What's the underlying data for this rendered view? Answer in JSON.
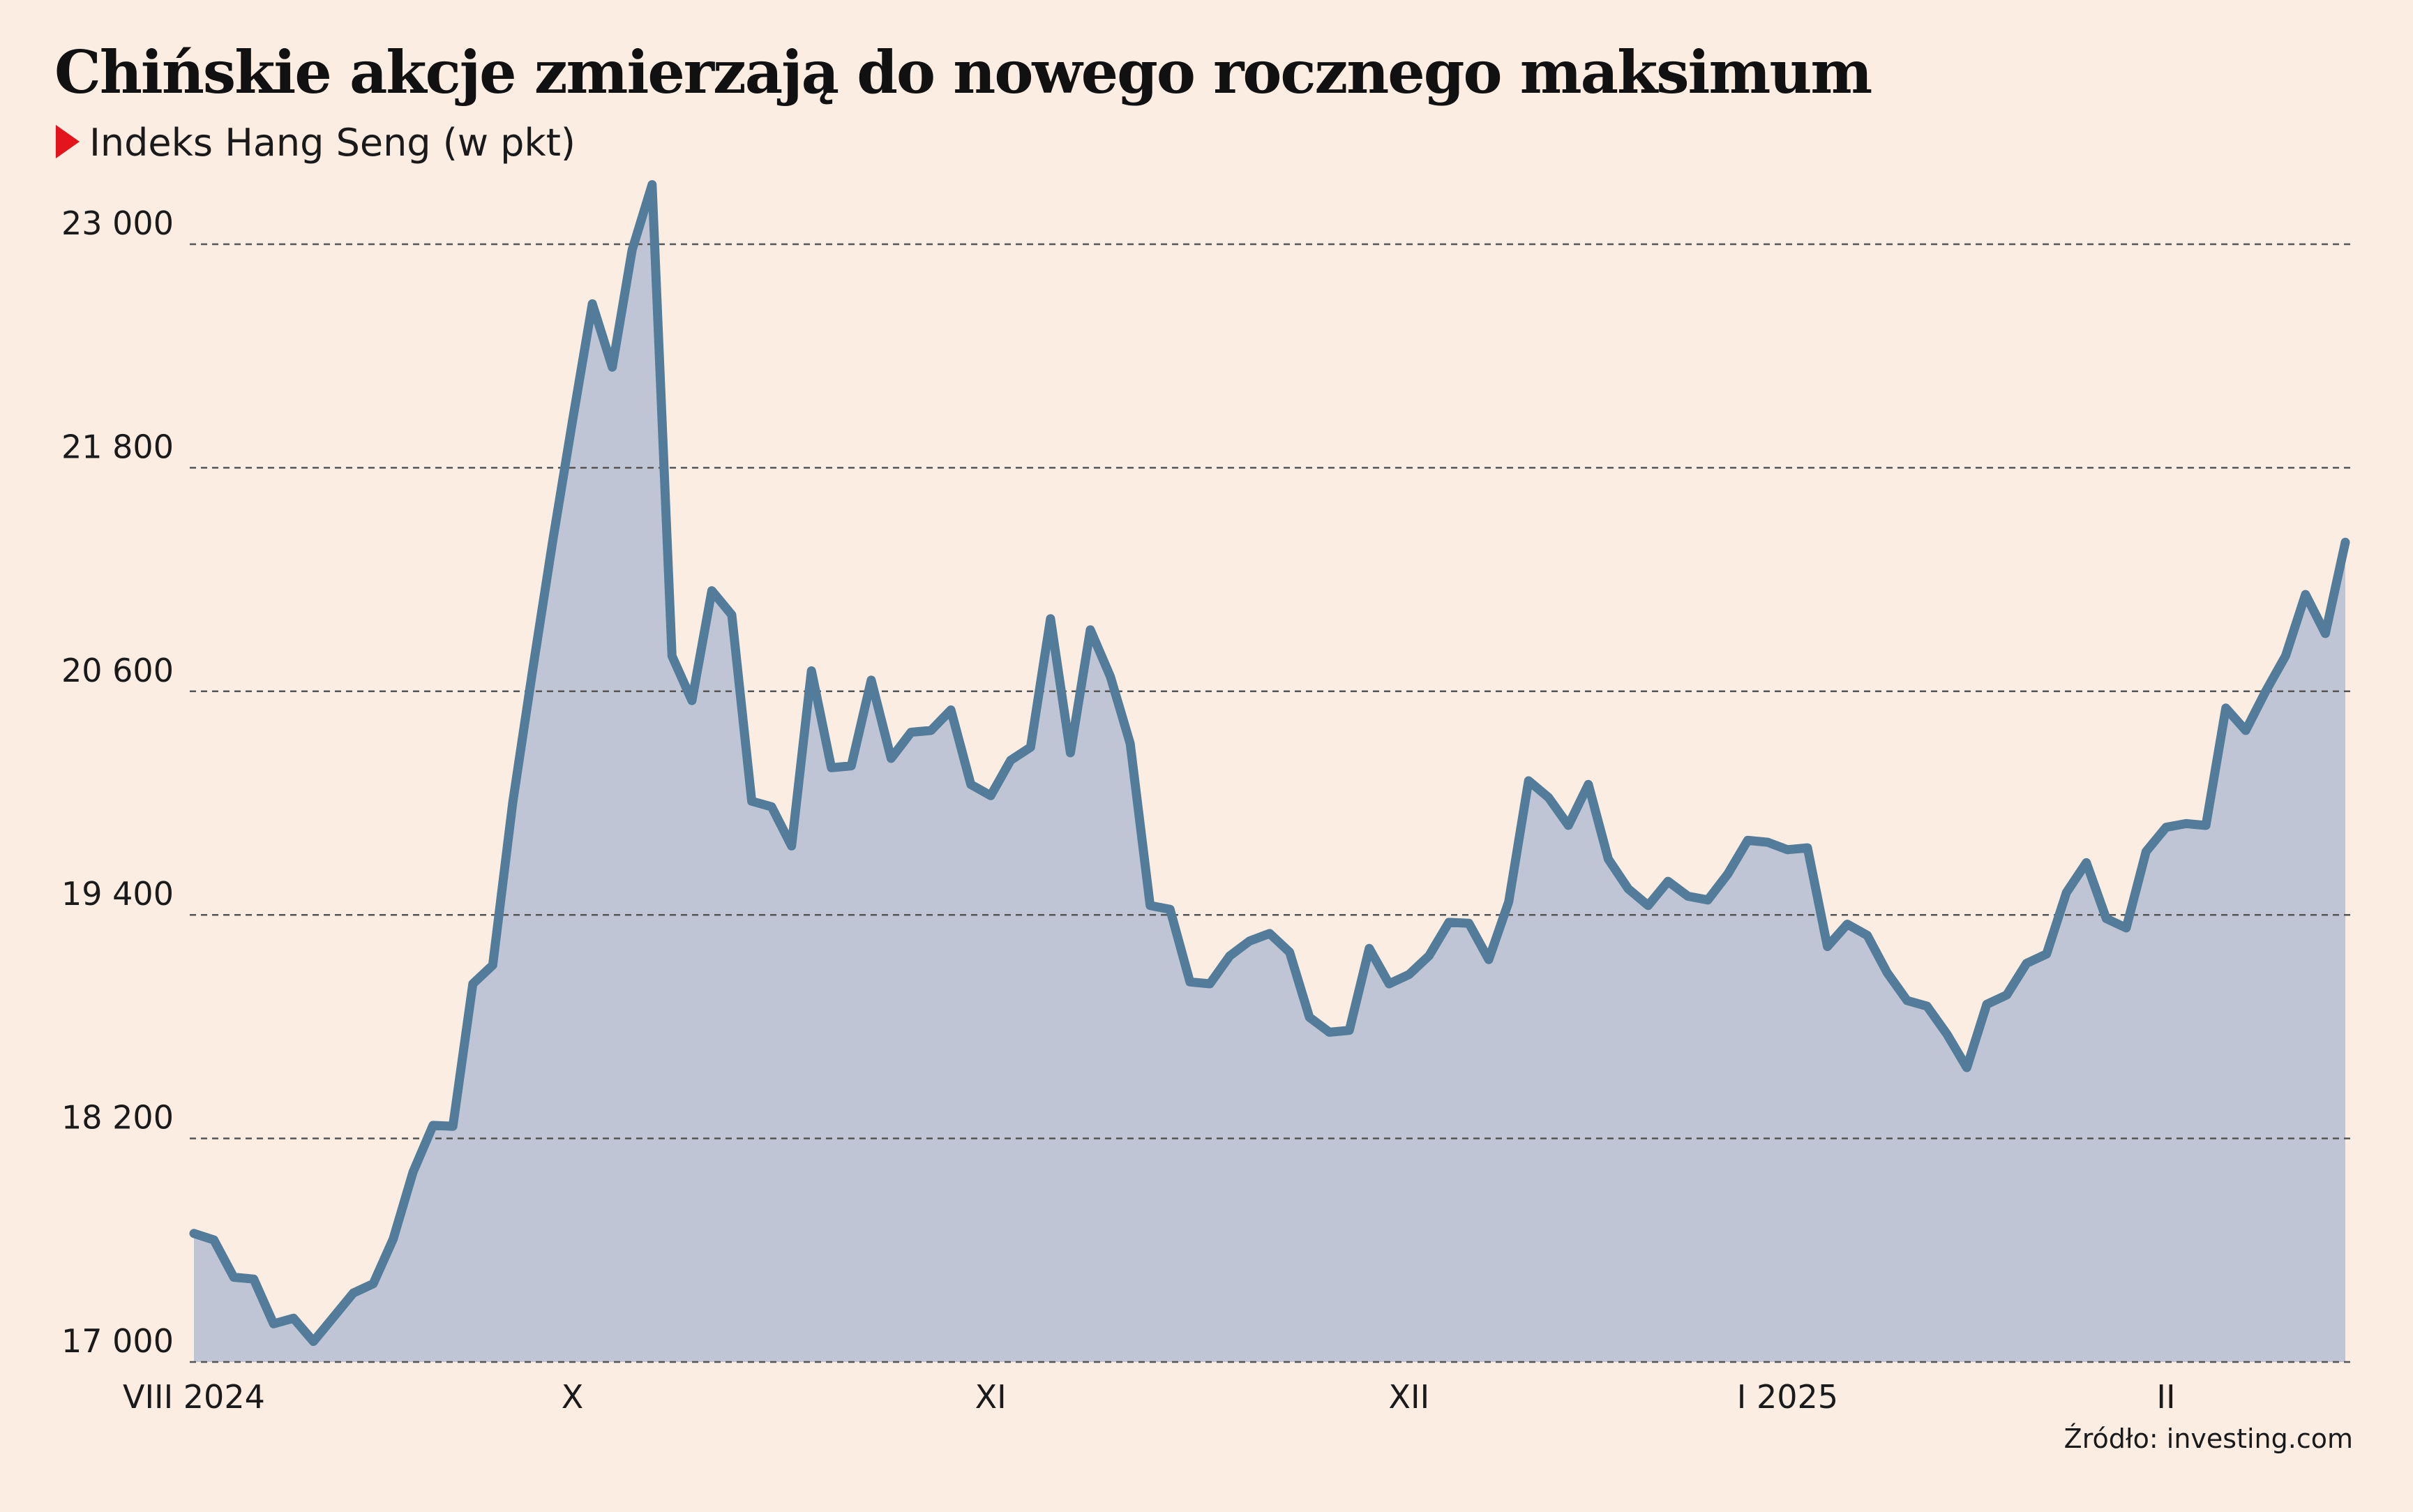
{
  "colors": {
    "background": "#fbede1",
    "line": "#527c99",
    "area": "#c0c5d5",
    "grid": "#555555",
    "marker": "#e3141b",
    "text": "#1a1a1a"
  },
  "chart_data": {
    "type": "area",
    "title": "Chińskie akcje zmierzają do nowego rocznego maksimum",
    "subtitle": "Indeks Hang Seng (w pkt)",
    "source": "Źródło: investing.com",
    "ylim": [
      17000,
      23000
    ],
    "yticks": [
      17000,
      18200,
      19400,
      20600,
      21800,
      23000
    ],
    "ytick_labels": [
      "17 000",
      "18 200",
      "19 400",
      "20 600",
      "21 800",
      "23 000"
    ],
    "grid": true,
    "legend": "none",
    "xtick_labels": [
      {
        "label": "VIII 2024",
        "index": 0
      },
      {
        "label": "X",
        "index": 19
      },
      {
        "label": "XI",
        "index": 40
      },
      {
        "label": "XII",
        "index": 61
      },
      {
        "label": "I 2025",
        "index": 80
      },
      {
        "label": "II",
        "index": 99
      }
    ],
    "values": [
      17690,
      17655,
      17455,
      17445,
      17205,
      17235,
      17110,
      17240,
      17370,
      17420,
      17660,
      18020,
      18270,
      18265,
      19030,
      19130,
      20000,
      20710,
      21400,
      22050,
      22680,
      22340,
      22970,
      23320,
      20790,
      20550,
      21140,
      21010,
      20010,
      19980,
      19770,
      20710,
      20190,
      20200,
      20660,
      20240,
      20380,
      20390,
      20500,
      20100,
      20040,
      20230,
      20300,
      20990,
      20270,
      20930,
      20680,
      20320,
      19450,
      19430,
      19040,
      19030,
      19180,
      19260,
      19300,
      19200,
      18850,
      18770,
      18780,
      19220,
      19030,
      19080,
      19180,
      19360,
      19355,
      19160,
      19470,
      20120,
      20030,
      19880,
      20100,
      19700,
      19540,
      19450,
      19580,
      19500,
      19480,
      19620,
      19800,
      19790,
      19750,
      19760,
      19230,
      19350,
      19290,
      19090,
      18940,
      18910,
      18760,
      18580,
      18920,
      18970,
      19140,
      19190,
      19520,
      19680,
      19380,
      19330,
      19740,
      19870,
      19890,
      19880,
      20510,
      20390,
      20600,
      20790,
      21120,
      20910,
      21400
    ]
  }
}
